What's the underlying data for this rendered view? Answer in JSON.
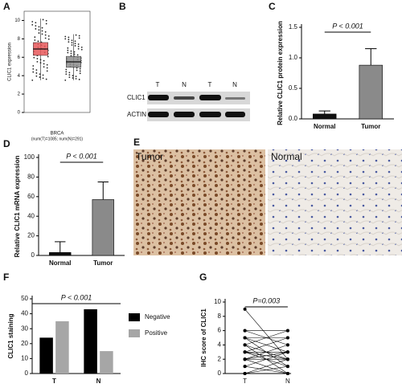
{
  "chart_data": [
    {
      "type": "box",
      "panel": "A",
      "ylabel": "CLIC1 expression",
      "xlabel": "BRCA",
      "note": "(num(T)=1085; num(N)=291)",
      "ylim": [
        0,
        11
      ],
      "yticks": [
        0,
        2,
        4,
        6,
        8,
        10
      ],
      "frame": true,
      "series": [
        {
          "color": "#e8585a",
          "whislo": 3.5,
          "q1": 6.2,
          "median": 6.9,
          "q3": 7.6,
          "whishi": 10.2
        },
        {
          "color": "#8c8c8c",
          "whislo": 3.5,
          "q1": 4.9,
          "median": 5.5,
          "q3": 6.1,
          "whishi": 8.5
        }
      ]
    },
    {
      "type": "bar",
      "panel": "C",
      "ylabel": "Relative CLIC1 protein expression",
      "annotation": "P < 0.001",
      "categories": [
        "Normal",
        "Tumor"
      ],
      "values": [
        0.08,
        0.88
      ],
      "errors": [
        0.05,
        0.27
      ],
      "colors": [
        "#111111",
        "#8a8a8a"
      ],
      "ylim": [
        0,
        1.5
      ],
      "yticks": [
        {
          "value": 0,
          "label": "0.0"
        },
        0.5,
        {
          "value": 1,
          "label": "1.0"
        },
        1.5
      ]
    },
    {
      "type": "bar",
      "panel": "D",
      "ylabel": "Relative CLIC1 mRNA expression",
      "annotation": "P < 0.001",
      "categories": [
        "Normal",
        "Tumor"
      ],
      "values": [
        3,
        57
      ],
      "errors": [
        11,
        18
      ],
      "colors": [
        "#111111",
        "#8a8a8a"
      ],
      "ylim": [
        0,
        100
      ],
      "yticks": [
        0,
        20,
        40,
        60,
        80,
        100
      ]
    },
    {
      "type": "grouped_bar",
      "panel": "F",
      "ylabel": "CLIC1 staining",
      "annotation": "P < 0.001",
      "categories": [
        "T",
        "N"
      ],
      "ylim": [
        0,
        50
      ],
      "yticks": [
        0,
        10,
        20,
        30,
        40,
        50
      ],
      "series": [
        {
          "name": "Negative",
          "color": "#000000",
          "values": [
            24,
            43
          ]
        },
        {
          "name": "Positive",
          "color": "#a6a6a6",
          "values": [
            35,
            15
          ]
        }
      ]
    },
    {
      "type": "paired",
      "panel": "G",
      "ylabel": "IHC score of CLIC1",
      "annotation": "P=0.003",
      "categories": [
        "T",
        "N"
      ],
      "ylim": [
        0,
        10
      ],
      "yticks": [
        0,
        2,
        4,
        6,
        8,
        10
      ],
      "values": [
        [
          9,
          2
        ],
        [
          6,
          6
        ],
        [
          6,
          4
        ],
        [
          5,
          3
        ],
        [
          5,
          1
        ],
        [
          4,
          6
        ],
        [
          4,
          2
        ],
        [
          4,
          0
        ],
        [
          3,
          5
        ],
        [
          3,
          3
        ],
        [
          3,
          2
        ],
        [
          3,
          1
        ],
        [
          2,
          4
        ],
        [
          2,
          3
        ],
        [
          2,
          0
        ],
        [
          2,
          2
        ],
        [
          1,
          3
        ],
        [
          1,
          0
        ],
        [
          0,
          2
        ],
        [
          0,
          1
        ],
        [
          0,
          0
        ],
        [
          5,
          5
        ]
      ]
    }
  ],
  "blot": {
    "panel": "B",
    "lanes": [
      "T",
      "N",
      "T",
      "N"
    ],
    "rows": [
      "CLIC1",
      "ACTIN"
    ]
  },
  "histology": {
    "panel": "E",
    "labels": [
      "Tumor",
      "Normal"
    ]
  }
}
